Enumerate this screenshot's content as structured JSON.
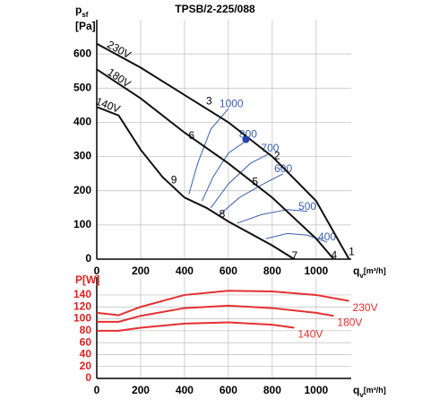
{
  "chart_data": [
    {
      "type": "line",
      "title": "TPSB/2-225/088",
      "ylabel_symbol": "p",
      "ylabel_sub": "sf",
      "ylabel_unit": "[Pa]",
      "xlabel_symbol": "q",
      "xlabel_sub": "v",
      "xlabel_unit": "[m³/h]",
      "xlim": [
        0,
        1160
      ],
      "xticks": [
        0,
        200,
        400,
        600,
        800,
        1000
      ],
      "ylim": [
        0,
        700
      ],
      "yticks": [
        0,
        100,
        200,
        300,
        400,
        500,
        600
      ],
      "grid": true,
      "tick_color": "#000000",
      "series": [
        {
          "name": "230V",
          "color": "#111111",
          "x": [
            0,
            200,
            400,
            600,
            700,
            800,
            1000,
            1150
          ],
          "values": [
            630,
            560,
            480,
            400,
            350,
            300,
            170,
            0
          ]
        },
        {
          "name": "180V",
          "color": "#111111",
          "x": [
            0,
            200,
            400,
            600,
            800,
            1000,
            1080
          ],
          "values": [
            555,
            470,
            370,
            280,
            180,
            60,
            0
          ]
        },
        {
          "name": "140V",
          "color": "#111111",
          "x": [
            0,
            100,
            200,
            300,
            400,
            500,
            600,
            800,
            900
          ],
          "values": [
            445,
            420,
            320,
            240,
            180,
            150,
            110,
            40,
            0
          ]
        }
      ],
      "contours": [
        {
          "label": "1000",
          "color": "#3a5fb0",
          "x": [
            420,
            460,
            520,
            600
          ],
          "values": [
            190,
            280,
            380,
            440
          ]
        },
        {
          "label": "800",
          "color": "#3a5fb0",
          "x": [
            480,
            530,
            600,
            690
          ],
          "values": [
            170,
            240,
            310,
            350
          ]
        },
        {
          "label": "700",
          "color": "#3a5fb0",
          "x": [
            520,
            600,
            700,
            790
          ],
          "values": [
            150,
            220,
            280,
            310
          ]
        },
        {
          "label": "600",
          "color": "#3a5fb0",
          "x": [
            560,
            650,
            760,
            850
          ],
          "values": [
            130,
            180,
            220,
            250
          ]
        },
        {
          "label": "500",
          "color": "#3a5fb0",
          "x": [
            640,
            750,
            870,
            960
          ],
          "values": [
            105,
            130,
            145,
            140
          ]
        },
        {
          "label": "400",
          "color": "#3a5fb0",
          "x": [
            770,
            870,
            960,
            1050
          ],
          "values": [
            60,
            75,
            70,
            50
          ]
        }
      ],
      "points": [
        {
          "label": "1",
          "x": 1140,
          "y": 20
        },
        {
          "label": "2",
          "x": 800,
          "y": 300
        },
        {
          "label": "3",
          "x": 490,
          "y": 460
        },
        {
          "label": "4",
          "x": 1060,
          "y": 10
        },
        {
          "label": "5",
          "x": 700,
          "y": 225
        },
        {
          "label": "6",
          "x": 410,
          "y": 360
        },
        {
          "label": "7",
          "x": 880,
          "y": 8
        },
        {
          "label": "8",
          "x": 550,
          "y": 130
        },
        {
          "label": "9",
          "x": 330,
          "y": 230
        }
      ],
      "operating_point": {
        "x": 680,
        "y": 350,
        "color": "#2240b0"
      }
    },
    {
      "type": "line",
      "ylabel": "P[W]",
      "xlabel_symbol": "q",
      "xlabel_sub": "v",
      "xlabel_unit": "[m³/h]",
      "xlim": [
        0,
        1160
      ],
      "xticks": [
        0,
        200,
        400,
        600,
        800,
        1000
      ],
      "ylim": [
        0,
        170
      ],
      "yticks": [
        0,
        20,
        40,
        60,
        80,
        100,
        120,
        140
      ],
      "grid": true,
      "tick_color": "#e02020",
      "series": [
        {
          "name": "230V",
          "color": "#e53030",
          "x": [
            0,
            100,
            200,
            400,
            600,
            800,
            1000,
            1150
          ],
          "values": [
            110,
            106,
            120,
            140,
            147,
            146,
            140,
            130
          ]
        },
        {
          "name": "180V",
          "color": "#e53030",
          "x": [
            0,
            100,
            200,
            400,
            600,
            800,
            1000,
            1080
          ],
          "values": [
            95,
            95,
            105,
            118,
            122,
            118,
            110,
            105
          ]
        },
        {
          "name": "140V",
          "color": "#e53030",
          "x": [
            0,
            100,
            200,
            400,
            600,
            800,
            900
          ],
          "values": [
            80,
            80,
            85,
            92,
            94,
            90,
            85
          ]
        }
      ]
    }
  ]
}
